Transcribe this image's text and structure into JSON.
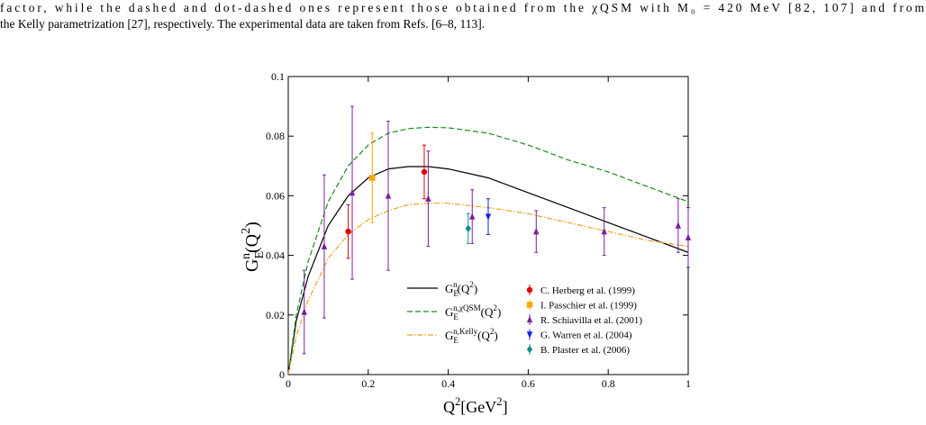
{
  "paragraph": {
    "lines": [
      "factor, while the dashed and dot-dashed ones represent those obtained from the χQSM with M₀ = 420 MeV [82, 107] and from",
      "the Kelly parametrization [27], respectively. The experimental data are taken from Refs. [6–8, 113]."
    ]
  },
  "chart_data": {
    "type": "line",
    "xlabel": [
      {
        "text": "Q"
      },
      {
        "text": "2",
        "pos": "sup"
      },
      {
        "text": "[GeV"
      },
      {
        "text": "2",
        "pos": "sup"
      },
      {
        "text": "]"
      }
    ],
    "ylabel": [
      {
        "text": "G"
      },
      {
        "text": "E",
        "pos": "sub"
      },
      {
        "text": "n",
        "pos": "sup"
      },
      {
        "text": "(Q"
      },
      {
        "text": "2",
        "pos": "sup"
      },
      {
        "text": ")"
      }
    ],
    "xlim": [
      0,
      1
    ],
    "ylim": [
      0,
      0.1
    ],
    "xticks": [
      0,
      0.2,
      0.4,
      0.6,
      0.8,
      1
    ],
    "yticks": [
      0,
      0.02,
      0.04,
      0.06,
      0.08,
      0.1
    ],
    "series": [
      {
        "name": [
          {
            "text": "G"
          },
          {
            "text": "E",
            "pos": "sub"
          },
          {
            "text": "n",
            "pos": "sup"
          },
          {
            "text": "(Q"
          },
          {
            "text": "2",
            "pos": "sup"
          },
          {
            "text": ")"
          }
        ],
        "color": "#000000",
        "dash": "solid",
        "x": [
          0,
          0.02,
          0.05,
          0.1,
          0.15,
          0.2,
          0.25,
          0.3,
          0.35,
          0.4,
          0.5,
          0.6,
          0.7,
          0.8,
          0.9,
          1.0
        ],
        "values": [
          0,
          0.018,
          0.033,
          0.05,
          0.06,
          0.066,
          0.069,
          0.0698,
          0.0698,
          0.069,
          0.066,
          0.061,
          0.056,
          0.051,
          0.046,
          0.041
        ]
      },
      {
        "name": [
          {
            "text": "G"
          },
          {
            "text": "E",
            "pos": "sub"
          },
          {
            "text": "n,χQSM",
            "pos": "sup"
          },
          {
            "text": "(Q"
          },
          {
            "text": "2",
            "pos": "sup"
          },
          {
            "text": ")"
          }
        ],
        "color": "#1a8a1a",
        "dash": "dashed",
        "x": [
          0,
          0.02,
          0.05,
          0.1,
          0.15,
          0.2,
          0.25,
          0.3,
          0.35,
          0.4,
          0.5,
          0.6,
          0.7,
          0.8,
          0.9,
          1.0
        ],
        "values": [
          0,
          0.02,
          0.038,
          0.058,
          0.07,
          0.077,
          0.081,
          0.0825,
          0.083,
          0.0828,
          0.081,
          0.077,
          0.072,
          0.068,
          0.063,
          0.058
        ]
      },
      {
        "name": [
          {
            "text": "G"
          },
          {
            "text": "E",
            "pos": "sub"
          },
          {
            "text": "n,Kelly",
            "pos": "sup"
          },
          {
            "text": "(Q"
          },
          {
            "text": "2",
            "pos": "sup"
          },
          {
            "text": ")"
          }
        ],
        "color": "#f0a020",
        "dash": "dashdot",
        "x": [
          0,
          0.02,
          0.05,
          0.1,
          0.15,
          0.2,
          0.25,
          0.3,
          0.35,
          0.4,
          0.5,
          0.6,
          0.7,
          0.8,
          0.9,
          1.0
        ],
        "values": [
          0,
          0.013,
          0.025,
          0.039,
          0.047,
          0.052,
          0.055,
          0.057,
          0.0575,
          0.0575,
          0.056,
          0.054,
          0.051,
          0.048,
          0.045,
          0.043
        ]
      }
    ],
    "data_series": [
      {
        "name": "C. Herberg et al. (1999)",
        "color": "#e00000",
        "marker": "circle",
        "x": [
          0.15,
          0.34
        ],
        "values": [
          0.048,
          0.068
        ],
        "errors": [
          0.009,
          0.009
        ]
      },
      {
        "name": "I. Passchier et al. (1999)",
        "color": "#ffa500",
        "marker": "square",
        "x": [
          0.21
        ],
        "values": [
          0.066
        ],
        "errors": [
          0.015
        ]
      },
      {
        "name": "R. Schiavilla et al. (2001)",
        "color": "#7a1fa0",
        "marker": "triangle-up",
        "x": [
          0.04,
          0.09,
          0.16,
          0.25,
          0.35,
          0.46,
          0.62,
          0.79,
          0.975,
          1.0
        ],
        "values": [
          0.021,
          0.043,
          0.061,
          0.06,
          0.059,
          0.053,
          0.048,
          0.048,
          0.05,
          0.046
        ],
        "errors": [
          0.014,
          0.024,
          0.029,
          0.025,
          0.016,
          0.009,
          0.007,
          0.008,
          0.009,
          0.01
        ]
      },
      {
        "name": "G. Warren et al. (2004)",
        "color": "#1020e0",
        "marker": "triangle-down",
        "x": [
          0.5
        ],
        "values": [
          0.053
        ],
        "errors": [
          0.006
        ]
      },
      {
        "name": "B. Plaster et al. (2006)",
        "color": "#108a8a",
        "marker": "diamond",
        "x": [
          0.45
        ],
        "values": [
          0.049
        ],
        "errors": [
          0.005
        ]
      }
    ]
  }
}
